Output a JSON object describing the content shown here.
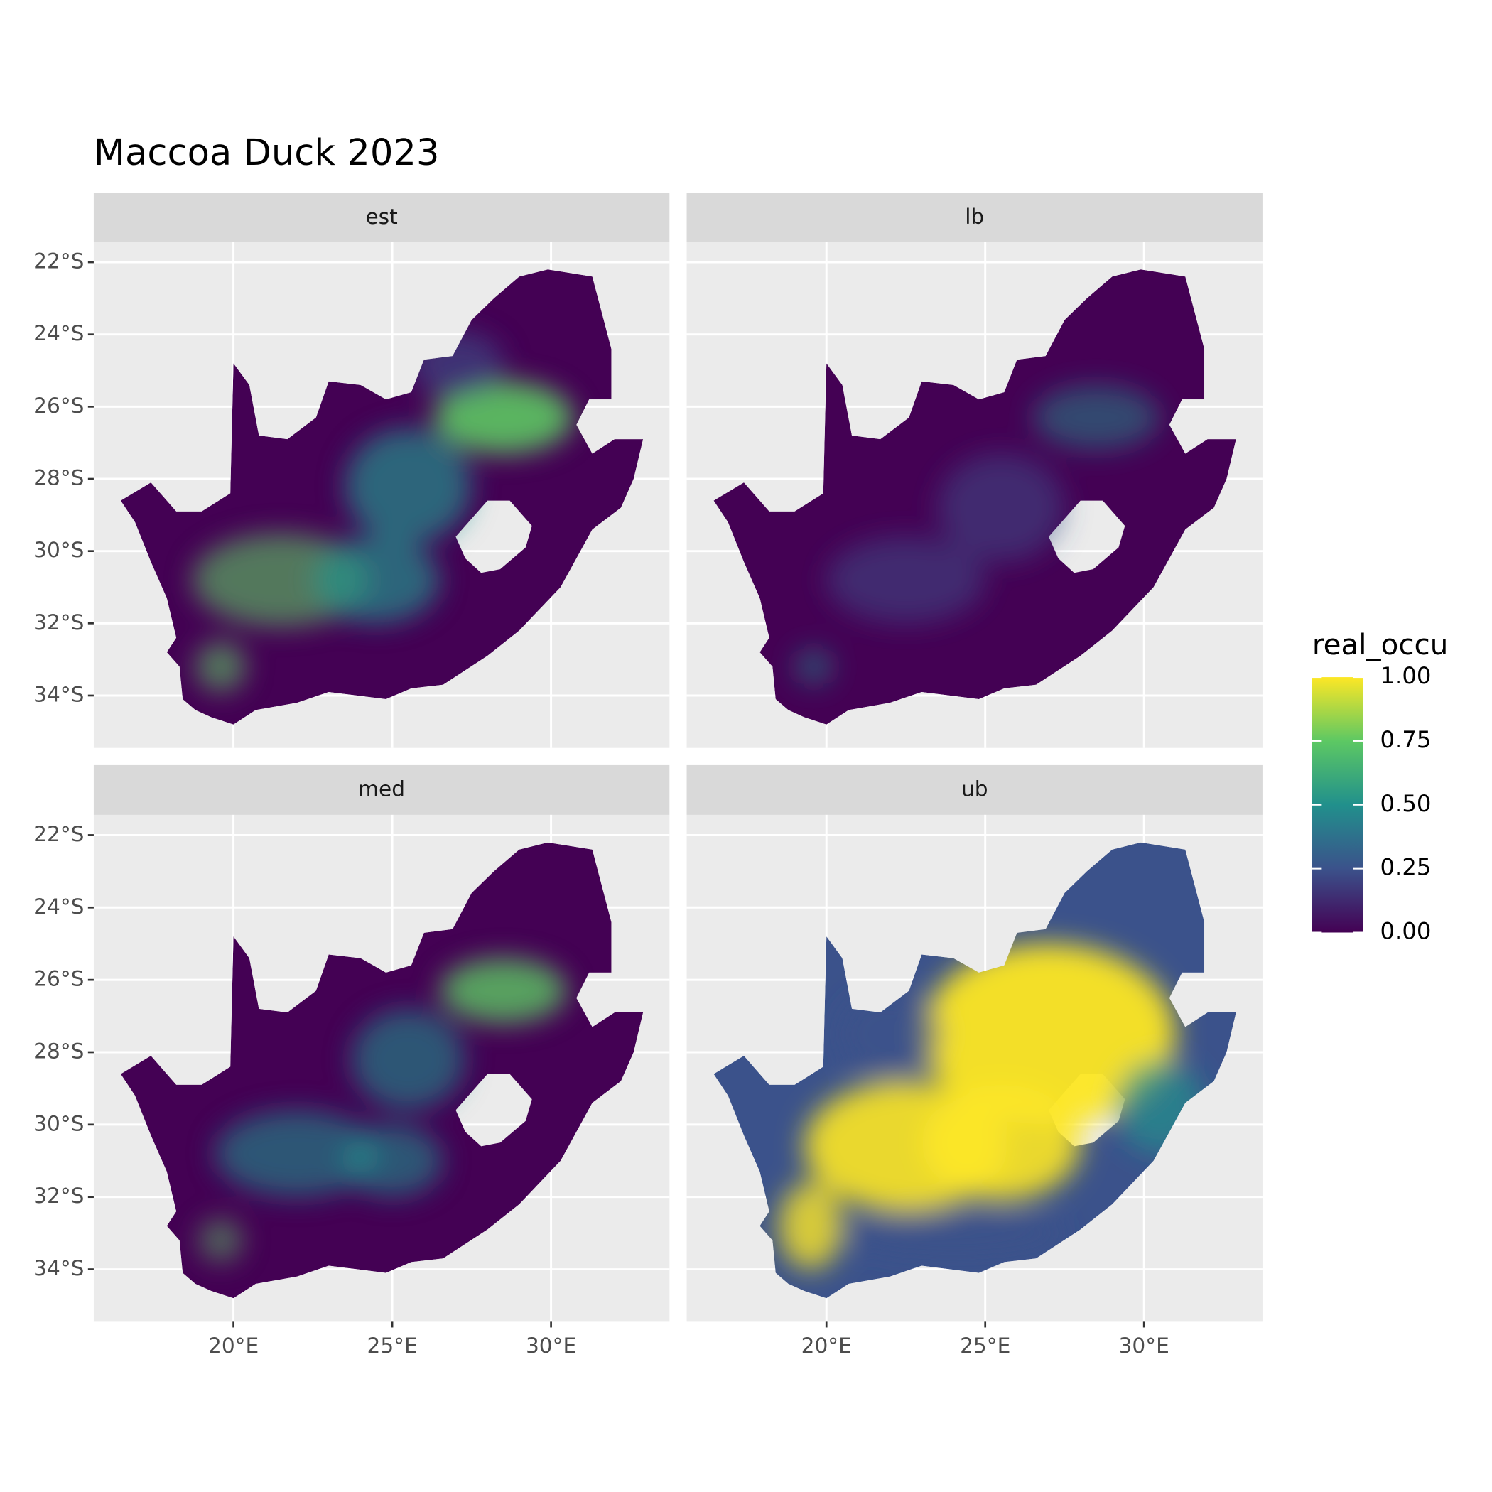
{
  "chart_data": {
    "type": "map",
    "title": "Maccoa Duck 2023",
    "facets": [
      "est",
      "lb",
      "med",
      "ub"
    ],
    "xlim": [
      15.6,
      33.73
    ],
    "ylim": [
      -35.45,
      -21.44
    ],
    "xticks": [
      {
        "value": 20,
        "label": "20°E"
      },
      {
        "value": 25,
        "label": "25°E"
      },
      {
        "value": 30,
        "label": "30°E"
      }
    ],
    "yticks": [
      {
        "value": -22,
        "label": "22°S"
      },
      {
        "value": -24,
        "label": "24°S"
      },
      {
        "value": -26,
        "label": "26°S"
      },
      {
        "value": -28,
        "label": "28°S"
      },
      {
        "value": -30,
        "label": "30°S"
      },
      {
        "value": -32,
        "label": "32°S"
      },
      {
        "value": -34,
        "label": "34°S"
      }
    ],
    "grid": true,
    "legend": {
      "title": "real_occu",
      "limits": [
        0,
        1
      ],
      "ticks": [
        {
          "value": 0,
          "label": "0.00"
        },
        {
          "value": 0.25,
          "label": "0.25"
        },
        {
          "value": 0.5,
          "label": "0.50"
        },
        {
          "value": 0.75,
          "label": "0.75"
        },
        {
          "value": 1,
          "label": "1.00"
        }
      ],
      "colors": [
        "#440154",
        "#3b528b",
        "#21908c",
        "#5dc863",
        "#fde725"
      ]
    }
  }
}
